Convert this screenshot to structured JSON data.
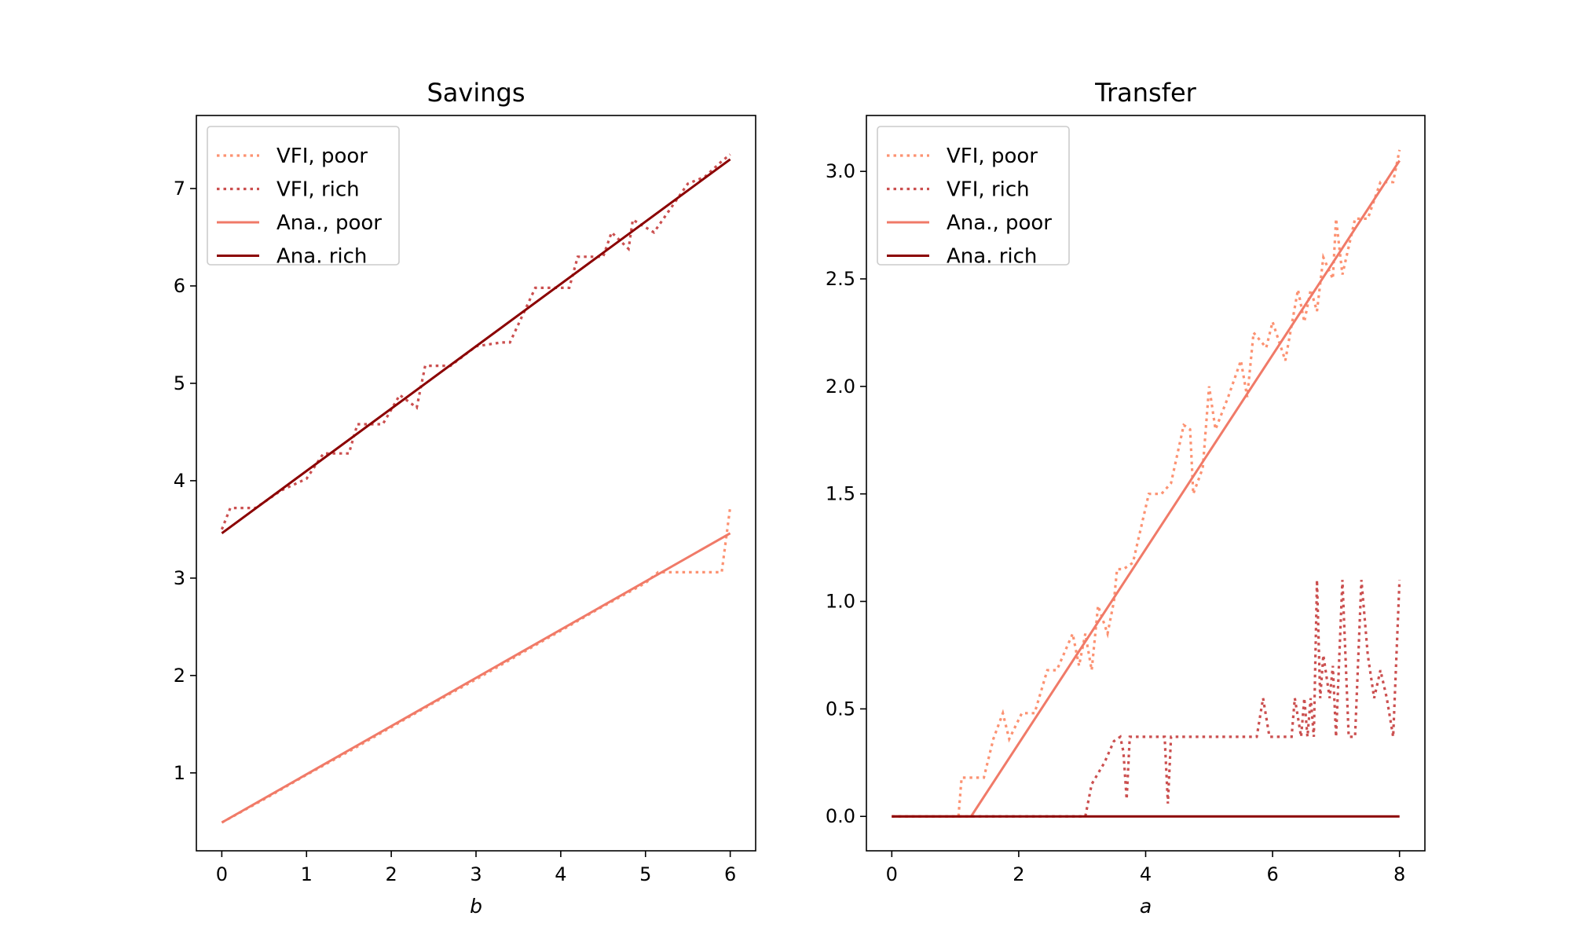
{
  "chart_data": [
    {
      "type": "line",
      "title": "Savings",
      "xlabel": "b",
      "ylabel": "",
      "xlim": [
        -0.3,
        6.3
      ],
      "ylim": [
        0.2,
        7.75
      ],
      "xticks": [
        0,
        1,
        2,
        3,
        4,
        5,
        6
      ],
      "xtick_labels": [
        "0",
        "1",
        "2",
        "3",
        "4",
        "5",
        "6"
      ],
      "yticks": [
        1,
        2,
        3,
        4,
        5,
        6,
        7
      ],
      "ytick_labels": [
        "1",
        "2",
        "3",
        "4",
        "5",
        "6",
        "7"
      ],
      "legend_position": "upper-left",
      "series": [
        {
          "name": "VFI, poor",
          "color": "#fc9272",
          "style": "dotted",
          "x": [
            0,
            0.5,
            1,
            1.5,
            2,
            2.5,
            3,
            3.5,
            4,
            4.5,
            5,
            5.15,
            5.5,
            5.9,
            6.0
          ],
          "y": [
            0.49,
            0.73,
            0.98,
            1.22,
            1.47,
            1.72,
            1.96,
            2.21,
            2.46,
            2.71,
            2.95,
            3.06,
            3.06,
            3.06,
            3.73
          ]
        },
        {
          "name": "VFI, rich",
          "color": "#cb4f4f",
          "style": "dotted",
          "x": [
            0,
            0.1,
            0.4,
            0.7,
            1.0,
            1.2,
            1.5,
            1.6,
            1.9,
            2.1,
            2.3,
            2.4,
            2.7,
            3.0,
            3.3,
            3.4,
            3.7,
            3.9,
            4.1,
            4.2,
            4.5,
            4.6,
            4.8,
            4.85,
            5.1,
            5.3,
            5.5,
            5.7,
            5.9,
            6.0
          ],
          "y": [
            3.5,
            3.72,
            3.72,
            3.9,
            4.02,
            4.28,
            4.28,
            4.58,
            4.58,
            4.88,
            4.75,
            5.18,
            5.18,
            5.38,
            5.42,
            5.42,
            5.98,
            5.98,
            5.98,
            6.3,
            6.3,
            6.55,
            6.38,
            6.68,
            6.55,
            6.8,
            7.05,
            7.12,
            7.28,
            7.35
          ]
        },
        {
          "name": "Ana., poor",
          "color": "#f07a68",
          "style": "solid",
          "x": [
            0,
            6
          ],
          "y": [
            0.49,
            3.46
          ]
        },
        {
          "name": "Ana. rich",
          "color": "#8b0000",
          "style": "solid",
          "x": [
            0,
            6
          ],
          "y": [
            3.46,
            7.3
          ]
        }
      ]
    },
    {
      "type": "line",
      "title": "Transfer",
      "xlabel": "a",
      "ylabel": "",
      "xlim": [
        -0.4,
        8.4
      ],
      "ylim": [
        -0.16,
        3.26
      ],
      "xticks": [
        0,
        2,
        4,
        6,
        8
      ],
      "xtick_labels": [
        "0",
        "2",
        "4",
        "6",
        "8"
      ],
      "yticks": [
        0,
        0.5,
        1.0,
        1.5,
        2.0,
        2.5,
        3.0
      ],
      "ytick_labels": [
        "0.0",
        "0.5",
        "1.0",
        "1.5",
        "2.0",
        "2.5",
        "3.0"
      ],
      "legend_position": "upper-left",
      "series": [
        {
          "name": "VFI, poor",
          "color": "#fc9272",
          "style": "dotted",
          "x": [
            0,
            1.05,
            1.1,
            1.45,
            1.6,
            1.75,
            1.85,
            2.05,
            2.25,
            2.45,
            2.6,
            2.85,
            2.95,
            3.05,
            3.15,
            3.25,
            3.4,
            3.5,
            3.55,
            3.65,
            3.8,
            4.05,
            4.25,
            4.4,
            4.6,
            4.7,
            4.75,
            4.9,
            5.0,
            5.1,
            5.3,
            5.5,
            5.6,
            5.7,
            5.9,
            6.0,
            6.2,
            6.4,
            6.5,
            6.6,
            6.7,
            6.8,
            6.95,
            7.0,
            7.1,
            7.3,
            7.5,
            7.7,
            7.9,
            8.0
          ],
          "y": [
            0.0,
            0.0,
            0.18,
            0.18,
            0.36,
            0.48,
            0.36,
            0.48,
            0.48,
            0.68,
            0.68,
            0.85,
            0.7,
            0.85,
            0.68,
            0.98,
            0.85,
            1.0,
            1.15,
            1.15,
            1.18,
            1.5,
            1.5,
            1.55,
            1.82,
            1.8,
            1.5,
            1.62,
            2.0,
            1.8,
            1.95,
            2.12,
            1.95,
            2.25,
            2.18,
            2.3,
            2.12,
            2.45,
            2.3,
            2.45,
            2.35,
            2.6,
            2.5,
            2.78,
            2.52,
            2.78,
            2.78,
            2.95,
            2.95,
            3.1
          ]
        },
        {
          "name": "VFI, rich",
          "color": "#cb4f4f",
          "style": "dotted",
          "x": [
            0,
            3.05,
            3.15,
            3.35,
            3.5,
            3.6,
            3.65,
            3.7,
            3.75,
            3.9,
            4.1,
            4.3,
            4.35,
            4.4,
            4.6,
            5.0,
            5.5,
            5.75,
            5.85,
            5.95,
            6.0,
            6.2,
            6.3,
            6.35,
            6.45,
            6.5,
            6.55,
            6.6,
            6.65,
            6.7,
            6.75,
            6.8,
            6.9,
            6.95,
            7.0,
            7.1,
            7.2,
            7.3,
            7.4,
            7.5,
            7.6,
            7.7,
            7.8,
            7.9,
            8.0
          ],
          "y": [
            0.0,
            0.0,
            0.15,
            0.25,
            0.35,
            0.37,
            0.3,
            0.08,
            0.37,
            0.37,
            0.37,
            0.37,
            0.06,
            0.37,
            0.37,
            0.37,
            0.37,
            0.37,
            0.55,
            0.37,
            0.37,
            0.37,
            0.37,
            0.55,
            0.37,
            0.55,
            0.37,
            0.55,
            0.37,
            1.1,
            0.55,
            0.75,
            0.55,
            0.7,
            0.37,
            1.1,
            0.37,
            0.37,
            1.1,
            0.75,
            0.55,
            0.68,
            0.55,
            0.37,
            1.1
          ]
        },
        {
          "name": "Ana., poor",
          "color": "#f07a68",
          "style": "solid",
          "x": [
            0,
            1.25,
            8
          ],
          "y": [
            0.0,
            0.0,
            3.05
          ]
        },
        {
          "name": "Ana. rich",
          "color": "#8b0000",
          "style": "solid",
          "x": [
            0,
            8
          ],
          "y": [
            0.0,
            0.0
          ]
        }
      ]
    }
  ]
}
